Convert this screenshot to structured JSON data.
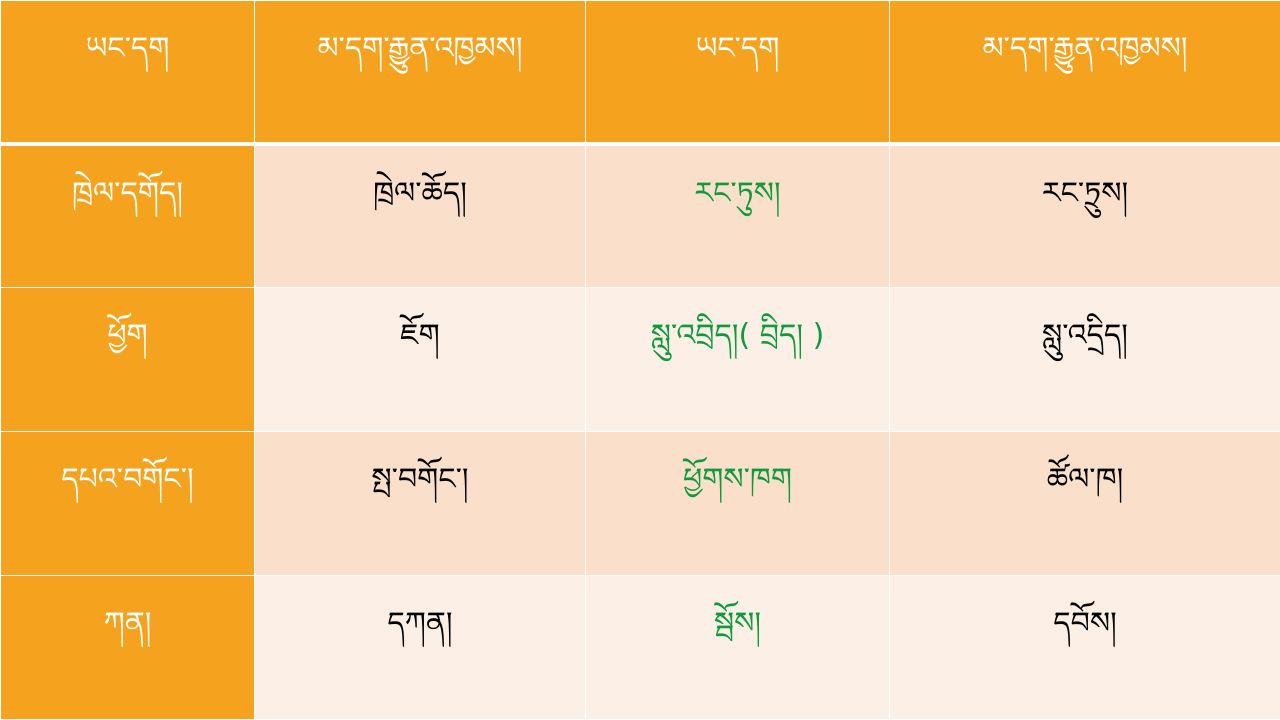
{
  "colors": {
    "header_bg": "#F5A31E",
    "row_odd_bg": "#FAE0CB",
    "row_even_bg": "#FCEFE5",
    "highlight_text": "#0E9A3E"
  },
  "header": [
    "ཡང་དག",
    "མ་དག་རྒྱུན་འཁྱམས།",
    "ཡང་དག",
    "མ་དག་རྒྱུན་འཁྱམས།"
  ],
  "rows": [
    {
      "correct1": "ཁྲེལ་དགོད།",
      "wrong1": "ཁྲེལ་ཆོད།",
      "correct2": "རང་ཏུས།",
      "wrong2": "རང་ཏྲུས།"
    },
    {
      "correct1": "ཕྱོག",
      "wrong1": "ཇོག",
      "correct2": "སླུ་འབྲིད།( བྲིད། )",
      "wrong2": "སླུ་འདྲིད།"
    },
    {
      "correct1": "དཔའ་བགོང་།",
      "wrong1": "སྤ་བགོང་།",
      "correct2": "ཕྱོགས་ཁག",
      "wrong2": "ཚོལ་ཁ།"
    },
    {
      "correct1": "ཀན།",
      "wrong1": "དཀན།",
      "correct2": "སྦོས།",
      "wrong2": "དབོས།"
    }
  ]
}
